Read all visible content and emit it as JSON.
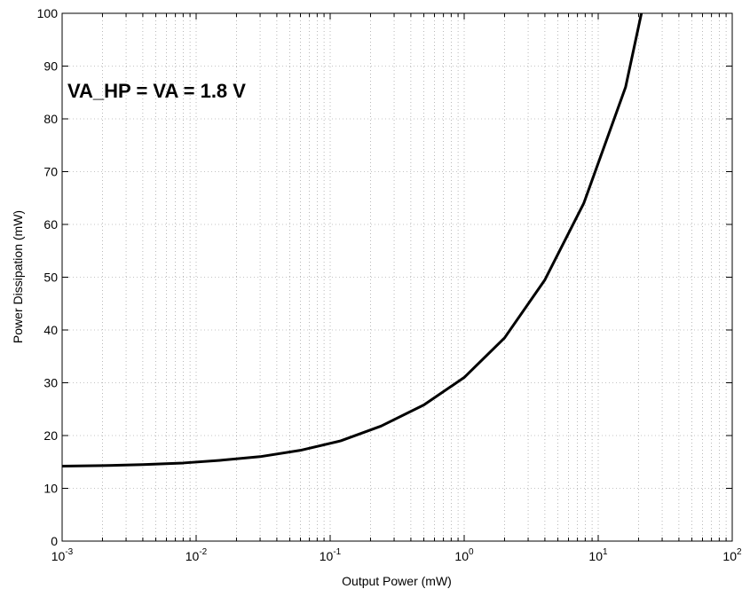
{
  "chart_data": {
    "type": "line",
    "title": "",
    "xlabel": "Output Power (mW)",
    "ylabel": "Power Dissipation (mW)",
    "xscale": "log",
    "xlim": [
      0.001,
      100
    ],
    "ylim": [
      0,
      100
    ],
    "x_tick_labels": [
      {
        "base": "10",
        "exp": "-3"
      },
      {
        "base": "10",
        "exp": "-2"
      },
      {
        "base": "10",
        "exp": "-1"
      },
      {
        "base": "10",
        "exp": "0"
      },
      {
        "base": "10",
        "exp": "1"
      },
      {
        "base": "10",
        "exp": "2"
      }
    ],
    "y_tick_labels": [
      "0",
      "10",
      "20",
      "30",
      "40",
      "50",
      "60",
      "70",
      "80",
      "90",
      "100"
    ],
    "grid": true,
    "annotation": "VA_HP = VA = 1.8 V",
    "series": [
      {
        "color": "#000000",
        "x": [
          0.001,
          0.002,
          0.004,
          0.008,
          0.015,
          0.03,
          0.06,
          0.12,
          0.24,
          0.5,
          1.0,
          2.0,
          4.0,
          7.8,
          16,
          21
        ],
        "y": [
          14.2,
          14.3,
          14.5,
          14.8,
          15.3,
          16.0,
          17.2,
          19.0,
          21.8,
          25.8,
          31.0,
          38.5,
          49.5,
          64.0,
          86.0,
          100
        ]
      }
    ]
  }
}
